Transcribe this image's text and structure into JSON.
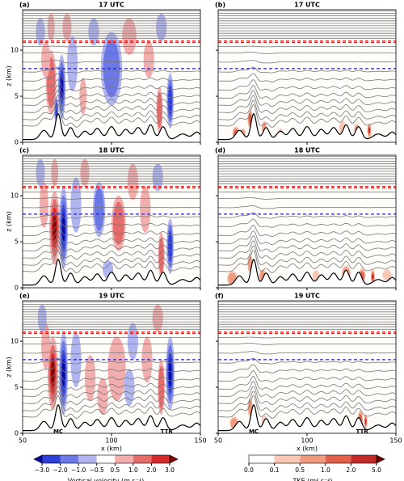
{
  "chart_data": [
    {
      "type": "contour",
      "panel_label": "(a)",
      "title": "17 UTC",
      "xlim": [
        50,
        150
      ],
      "ylim": [
        0,
        14.4
      ],
      "ylabel": "z (km)",
      "yticks": [
        0,
        5,
        10
      ]
    },
    {
      "type": "contour",
      "panel_label": "(b)",
      "title": "17 UTC",
      "xlim": [
        50,
        150
      ],
      "ylim": [
        0,
        14.4
      ]
    },
    {
      "type": "contour",
      "panel_label": "(c)",
      "title": "18 UTC",
      "xlim": [
        50,
        150
      ],
      "ylim": [
        0,
        14.4
      ],
      "ylabel": "z (km)",
      "yticks": [
        0,
        5,
        10
      ]
    },
    {
      "type": "contour",
      "panel_label": "(d)",
      "title": "18 UTC",
      "xlim": [
        50,
        150
      ],
      "ylim": [
        0,
        14.4
      ]
    },
    {
      "type": "contour",
      "panel_label": "(e)",
      "title": "19 UTC",
      "xlim": [
        50,
        150
      ],
      "ylim": [
        0,
        14.4
      ],
      "ylabel": "z (km)",
      "yticks": [
        0,
        5,
        10
      ],
      "xlabel": "x (km)",
      "xticks": [
        50,
        100,
        150
      ],
      "annotations": [
        "MC",
        "TTR"
      ]
    },
    {
      "type": "contour",
      "panel_label": "(f)",
      "title": "19 UTC",
      "xlim": [
        50,
        150
      ],
      "ylim": [
        0,
        14.4
      ],
      "xlabel": "x (km)",
      "xticks": [
        50,
        100,
        150
      ],
      "annotations": [
        "MC",
        "TTR"
      ]
    },
    {
      "type": "colorbar",
      "label": "Vertical velocity (m s⁻¹)",
      "ticks": [
        {
          "value": -3,
          "label": "−3.0"
        },
        {
          "value": -2,
          "label": "−2.0"
        },
        {
          "value": -1,
          "label": "−1.0"
        },
        {
          "value": -0.5,
          "label": "−0.5"
        },
        0.5,
        {
          "value": 1,
          "label": "1.0"
        },
        {
          "value": 2,
          "label": "2.0"
        },
        {
          "value": 3,
          "label": "3.0"
        }
      ],
      "colors": [
        "#2f3fd8",
        "#6c78e6",
        "#b0b5f0",
        "#ffffff",
        "#f2adad",
        "#e66c6c",
        "#d42c2c"
      ],
      "under_color": "#0a0aa0",
      "over_color": "#8c0000"
    },
    {
      "type": "colorbar",
      "label": "TKE (m² s⁻²)",
      "ticks": [
        {
          "value": 0,
          "label": "0.0"
        },
        0.1,
        0.5,
        {
          "value": 1,
          "label": "1.0"
        },
        {
          "value": 2,
          "label": "2.0"
        },
        {
          "value": 5,
          "label": "5.0"
        }
      ],
      "colors": [
        "#ffffff",
        "#f8c8b4",
        "#f09a80",
        "#e0604a",
        "#c22a2a"
      ],
      "over_color": "#6a0000"
    }
  ]
}
